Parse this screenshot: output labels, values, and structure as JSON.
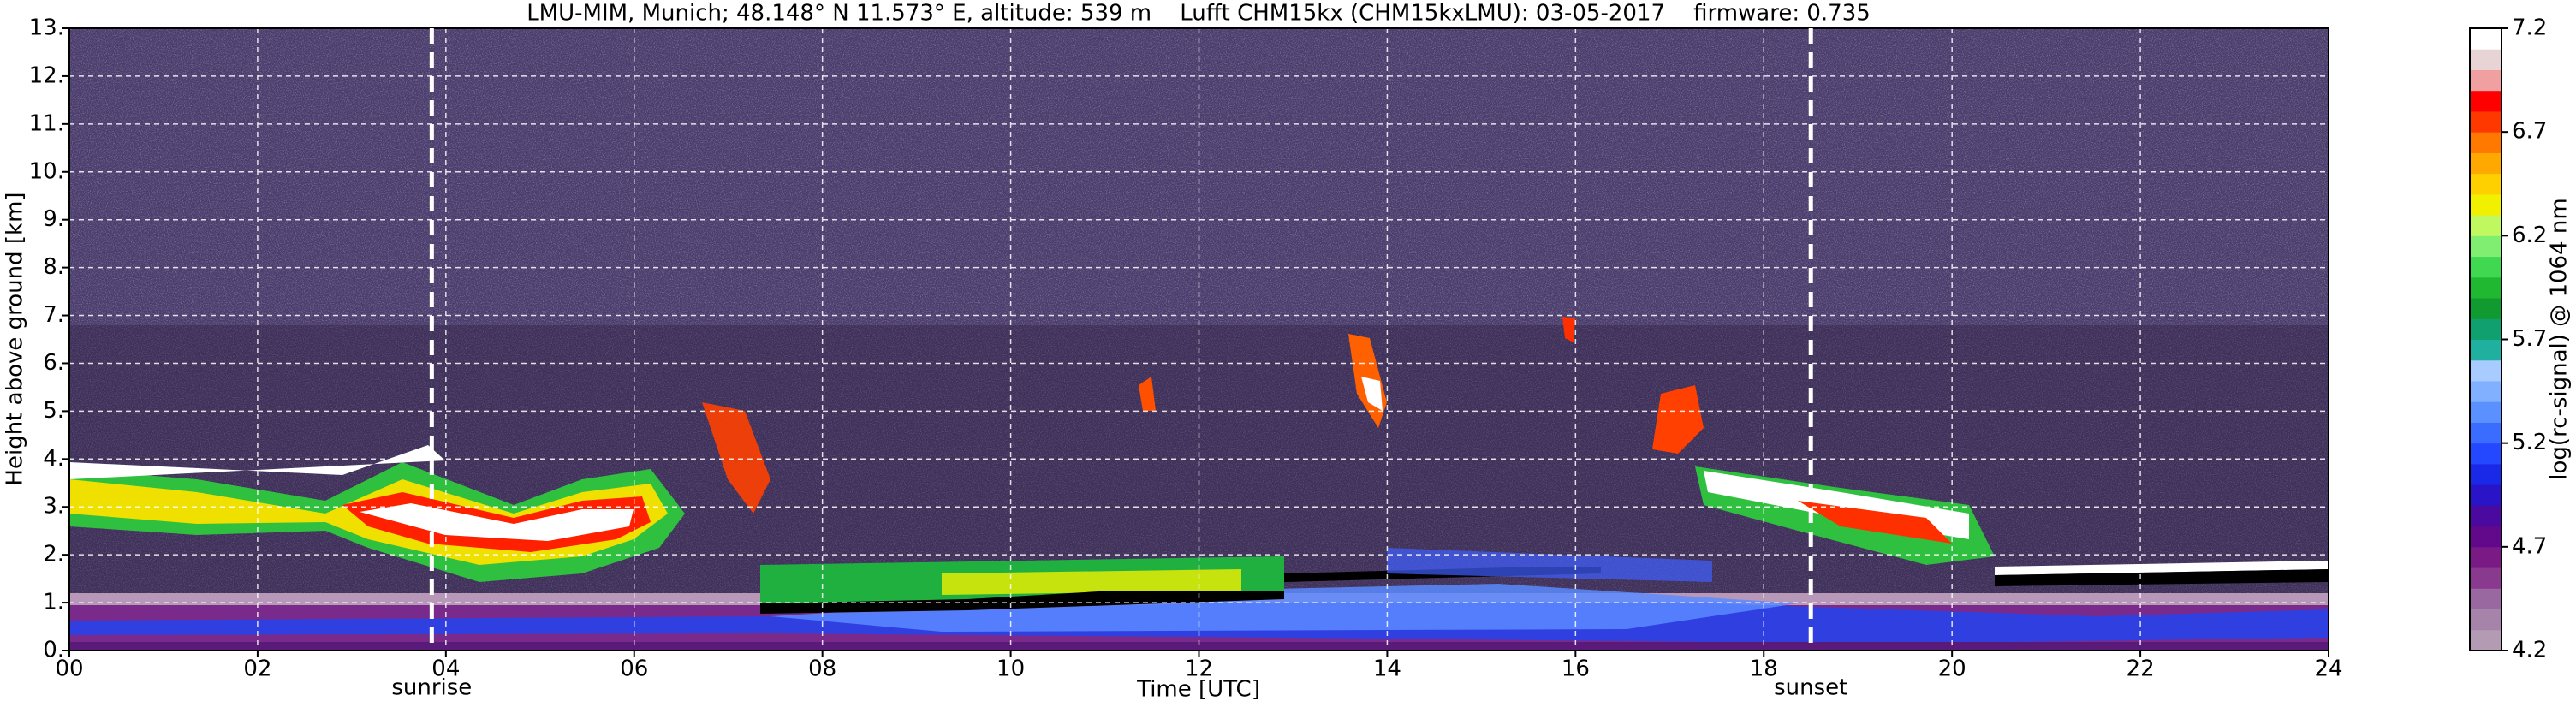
{
  "chart_data": {
    "type": "heatmap",
    "title": "LMU-MIM, Munich; 48.148° N 11.573° E, altitude: 539 m    Lufft CHM15kx (CHM15kxLMU): 03-05-2017    firmware: 0.735",
    "x_label": "Time [UTC]",
    "y_label": "Height above ground [km]",
    "xlim": [
      0,
      24
    ],
    "xticks": [
      {
        "value": 0,
        "label": "00"
      },
      {
        "value": 2,
        "label": "02"
      },
      {
        "value": 4,
        "label": "04"
      },
      {
        "value": 6,
        "label": "06"
      },
      {
        "value": 8,
        "label": "08"
      },
      {
        "value": 10,
        "label": "10"
      },
      {
        "value": 12,
        "label": "12"
      },
      {
        "value": 14,
        "label": "14"
      },
      {
        "value": 16,
        "label": "16"
      },
      {
        "value": 18,
        "label": "18"
      },
      {
        "value": 20,
        "label": "20"
      },
      {
        "value": 22,
        "label": "22"
      },
      {
        "value": 24,
        "label": "24"
      }
    ],
    "ylim": [
      0,
      13
    ],
    "yticks": [
      {
        "value": 0,
        "label": "0."
      },
      {
        "value": 1,
        "label": "1."
      },
      {
        "value": 2,
        "label": "2."
      },
      {
        "value": 3,
        "label": "3."
      },
      {
        "value": 4,
        "label": "4."
      },
      {
        "value": 5,
        "label": "5."
      },
      {
        "value": 6,
        "label": "6."
      },
      {
        "value": 7,
        "label": "7."
      },
      {
        "value": 8,
        "label": "8."
      },
      {
        "value": 9,
        "label": "9."
      },
      {
        "value": 10,
        "label": "10."
      },
      {
        "value": 11,
        "label": "11."
      },
      {
        "value": 12,
        "label": "12."
      },
      {
        "value": 13,
        "label": "13."
      }
    ],
    "grid": true,
    "annotations": [
      {
        "label": "sunrise",
        "x": 3.85
      },
      {
        "label": "sunset",
        "x": 18.5
      }
    ],
    "colorbar": {
      "label": "log(rc-signal) @ 1064 nm",
      "lim": [
        4.2,
        7.2
      ],
      "ticks": [
        4.2,
        4.7,
        5.2,
        5.7,
        6.2,
        6.7,
        7.2
      ],
      "colors": [
        "#b49bb4",
        "#a684aa",
        "#9a68a0",
        "#8a3a8e",
        "#7a1a84",
        "#62088a",
        "#4a0aa0",
        "#2a14c8",
        "#1a28e8",
        "#2448ff",
        "#3a6cff",
        "#5a90ff",
        "#80b0ff",
        "#a8ccff",
        "#20b0a0",
        "#10a070",
        "#109a30",
        "#20b830",
        "#40d850",
        "#80ee70",
        "#c0f860",
        "#f0f000",
        "#ffd000",
        "#ffa800",
        "#ff7800",
        "#ff3800",
        "#ff0000",
        "#f0a0a0",
        "#e8d4d4",
        "#ffffff"
      ]
    }
  }
}
